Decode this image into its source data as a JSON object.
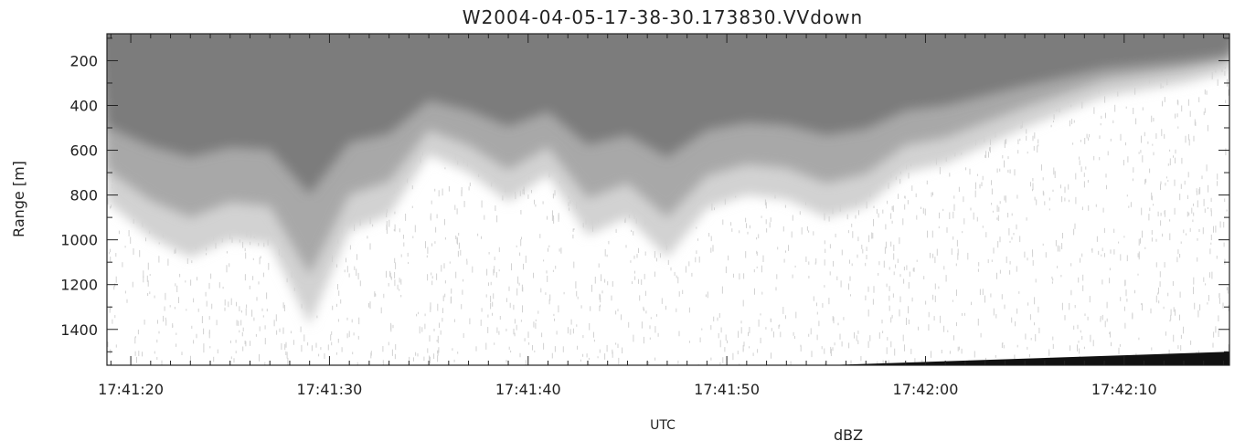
{
  "chart_data": {
    "type": "heatmap",
    "title": "W2004-04-05-17-38-30.173830.VVdown",
    "xlabel": "UTC",
    "ylabel": "Range [m]",
    "colorbar_label": "dBZ",
    "x_ticks": [
      "17:41:20",
      "17:41:30",
      "17:41:40",
      "17:41:50",
      "17:42:00",
      "17:42:10"
    ],
    "x_tick_seconds": [
      0,
      10,
      20,
      30,
      40,
      50
    ],
    "x_range_seconds": [
      -1.2,
      55.3
    ],
    "y_ticks": [
      200,
      400,
      600,
      800,
      1000,
      1200,
      1400
    ],
    "y_range": [
      80,
      1560
    ],
    "y_inverted": true,
    "colormap": "grayscale",
    "colors": {
      "background": "#ffffff",
      "light_echo": "#d2d2d2",
      "mid_echo": "#a8a8a8",
      "strong_echo": "#7c7c7c",
      "surface": "#111111"
    },
    "echo_top_profile": {
      "x_seconds": [
        -1.2,
        1,
        3,
        5,
        7,
        9,
        11,
        13,
        15,
        17,
        19,
        21,
        23,
        25,
        27,
        29,
        31,
        33,
        35,
        37,
        39,
        41,
        43,
        45,
        47,
        49,
        51,
        53,
        55.3
      ],
      "range_m": [
        830,
        990,
        1080,
        1000,
        1020,
        1380,
        960,
        890,
        620,
        700,
        830,
        710,
        980,
        900,
        1080,
        860,
        800,
        820,
        900,
        850,
        700,
        660,
        580,
        500,
        430,
        360,
        330,
        300,
        250
      ]
    },
    "surface_band": {
      "x_seconds": [
        35,
        55.3
      ],
      "range_m": [
        1500,
        1560
      ]
    }
  }
}
